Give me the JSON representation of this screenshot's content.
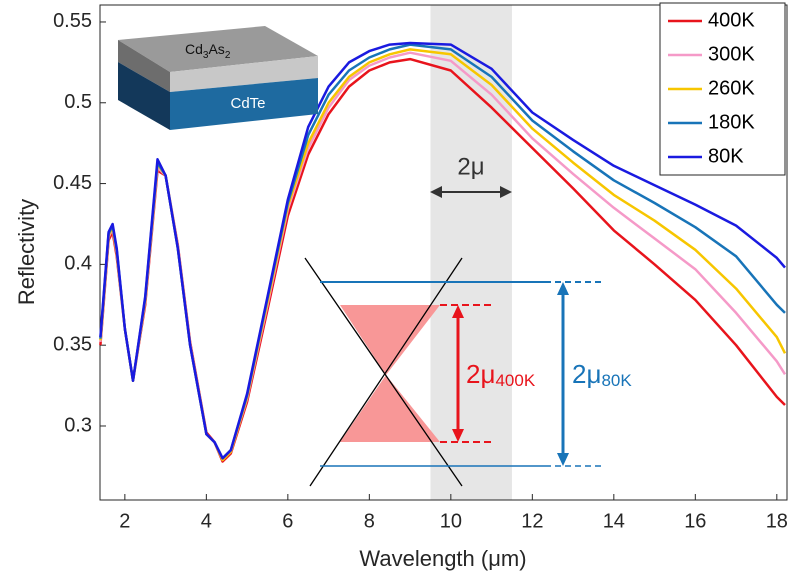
{
  "chart_data": {
    "type": "line",
    "x_label": "Wavelength (μm)",
    "y_label": "Reflectivity",
    "xlim": [
      1.39,
      18.25
    ],
    "ylim": [
      0.2542,
      0.5605
    ],
    "xticks": [
      2,
      4,
      6,
      8,
      10,
      12,
      14,
      16,
      18
    ],
    "yticks": [
      0.3,
      0.35,
      0.4,
      0.45,
      0.5,
      0.55
    ],
    "shaded_band": [
      9.5,
      11.5
    ],
    "legend": "upper right",
    "x": [
      1.4,
      1.6,
      1.7,
      1.8,
      2.0,
      2.2,
      2.5,
      2.8,
      3.0,
      3.3,
      3.6,
      4.0,
      4.2,
      4.4,
      4.6,
      5.0,
      5.5,
      6.0,
      6.5,
      7.0,
      7.5,
      8.0,
      8.5,
      9.0,
      10.0,
      11.0,
      12.0,
      13.0,
      14.0,
      15.0,
      16.0,
      17.0,
      18.0,
      18.2
    ],
    "series": [
      {
        "name": "400K",
        "color": "#e8141c",
        "values": [
          0.35,
          0.415,
          0.42,
          0.405,
          0.36,
          0.328,
          0.375,
          0.458,
          0.455,
          0.412,
          0.352,
          0.296,
          0.29,
          0.278,
          0.283,
          0.315,
          0.372,
          0.43,
          0.468,
          0.493,
          0.51,
          0.52,
          0.525,
          0.527,
          0.52,
          0.497,
          0.472,
          0.447,
          0.421,
          0.4,
          0.378,
          0.35,
          0.318,
          0.313
        ]
      },
      {
        "name": "300K",
        "color": "#f59ac8",
        "values": [
          0.352,
          0.417,
          0.422,
          0.407,
          0.36,
          0.328,
          0.377,
          0.46,
          0.455,
          0.411,
          0.351,
          0.295,
          0.29,
          0.279,
          0.284,
          0.317,
          0.375,
          0.434,
          0.472,
          0.497,
          0.514,
          0.523,
          0.528,
          0.531,
          0.526,
          0.505,
          0.478,
          0.456,
          0.435,
          0.416,
          0.397,
          0.37,
          0.34,
          0.332
        ]
      },
      {
        "name": "260K",
        "color": "#f7c600",
        "values": [
          0.353,
          0.418,
          0.423,
          0.408,
          0.36,
          0.328,
          0.378,
          0.462,
          0.455,
          0.41,
          0.35,
          0.295,
          0.29,
          0.279,
          0.284,
          0.318,
          0.377,
          0.436,
          0.475,
          0.5,
          0.516,
          0.525,
          0.53,
          0.533,
          0.53,
          0.511,
          0.484,
          0.463,
          0.443,
          0.427,
          0.409,
          0.385,
          0.355,
          0.345
        ]
      },
      {
        "name": "180K",
        "color": "#1874b8",
        "values": [
          0.354,
          0.419,
          0.424,
          0.409,
          0.36,
          0.328,
          0.379,
          0.463,
          0.455,
          0.41,
          0.35,
          0.295,
          0.29,
          0.28,
          0.285,
          0.319,
          0.379,
          0.438,
          0.48,
          0.505,
          0.52,
          0.528,
          0.533,
          0.536,
          0.533,
          0.516,
          0.489,
          0.47,
          0.452,
          0.438,
          0.423,
          0.405,
          0.375,
          0.37
        ]
      },
      {
        "name": "80K",
        "color": "#1a1ae0",
        "values": [
          0.355,
          0.42,
          0.425,
          0.41,
          0.36,
          0.328,
          0.38,
          0.465,
          0.455,
          0.41,
          0.35,
          0.295,
          0.29,
          0.28,
          0.285,
          0.32,
          0.38,
          0.44,
          0.485,
          0.51,
          0.525,
          0.532,
          0.536,
          0.537,
          0.536,
          0.521,
          0.494,
          0.477,
          0.461,
          0.449,
          0.437,
          0.424,
          0.404,
          0.398
        ]
      }
    ],
    "annotations": {
      "inset_top_layer": [
        "Cd",
        "3",
        "As",
        "2"
      ],
      "inset_bottom_layer": "CdTe",
      "band_width": "2μ",
      "gap_400K": [
        "2μ",
        "400K"
      ],
      "gap_80K": [
        "2μ",
        "80K"
      ]
    }
  }
}
